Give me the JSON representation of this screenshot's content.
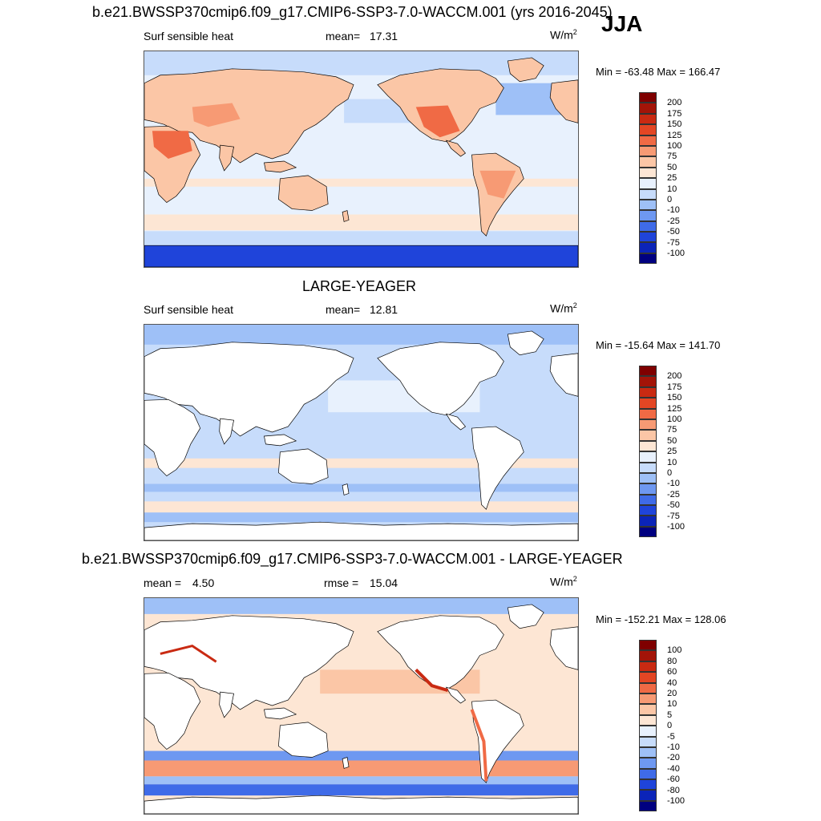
{
  "season": "JJA",
  "colors": {
    "warm": [
      "#fde6d4",
      "#fbc6a6",
      "#f79a74",
      "#f06a45",
      "#e34624",
      "#c92a12",
      "#a31408",
      "#7f0000"
    ],
    "cool": [
      "#e8f1fd",
      "#c7dcfb",
      "#9ec0f7",
      "#6e98f1",
      "#3f6be8",
      "#1f44da",
      "#0b24b8",
      "#000080"
    ],
    "land": "#ffffff",
    "coast": "#000000"
  },
  "panels": [
    {
      "title": "b.e21.BWSSP370cmip6.f09_g17.CMIP6-SSP3-7.0-WACCM.001 (yrs 2016-2045)",
      "variable": "Surf sensible heat",
      "stat_label": "mean=",
      "stat_value": "17.31",
      "units": "W/m",
      "units_sup": "2",
      "minmax": "Min = -63.48 Max = 166.47",
      "colorbar_labels": [
        "200",
        "175",
        "150",
        "125",
        "100",
        "75",
        "50",
        "25",
        "10",
        "0",
        "-10",
        "-25",
        "-50",
        "-75",
        "-100"
      ]
    },
    {
      "title": "LARGE-YEAGER",
      "variable": "Surf sensible heat",
      "stat_label": "mean=",
      "stat_value": "12.81",
      "units": "W/m",
      "units_sup": "2",
      "minmax": "Min = -15.64 Max = 141.70",
      "colorbar_labels": [
        "200",
        "175",
        "150",
        "125",
        "100",
        "75",
        "50",
        "25",
        "10",
        "0",
        "-10",
        "-25",
        "-50",
        "-75",
        "-100"
      ]
    },
    {
      "title": "b.e21.BWSSP370cmip6.f09_g17.CMIP6-SSP3-7.0-WACCM.001 - LARGE-YEAGER",
      "variable": "mean =",
      "stat_label": "rmse =",
      "mean_value": "4.50",
      "stat_value": "15.04",
      "units": "W/m",
      "units_sup": "2",
      "minmax": "Min = -152.21 Max = 128.06",
      "colorbar_labels": [
        "100",
        "80",
        "60",
        "40",
        "20",
        "10",
        "5",
        "0",
        "-5",
        "-10",
        "-20",
        "-40",
        "-60",
        "-80",
        "-100"
      ]
    }
  ]
}
